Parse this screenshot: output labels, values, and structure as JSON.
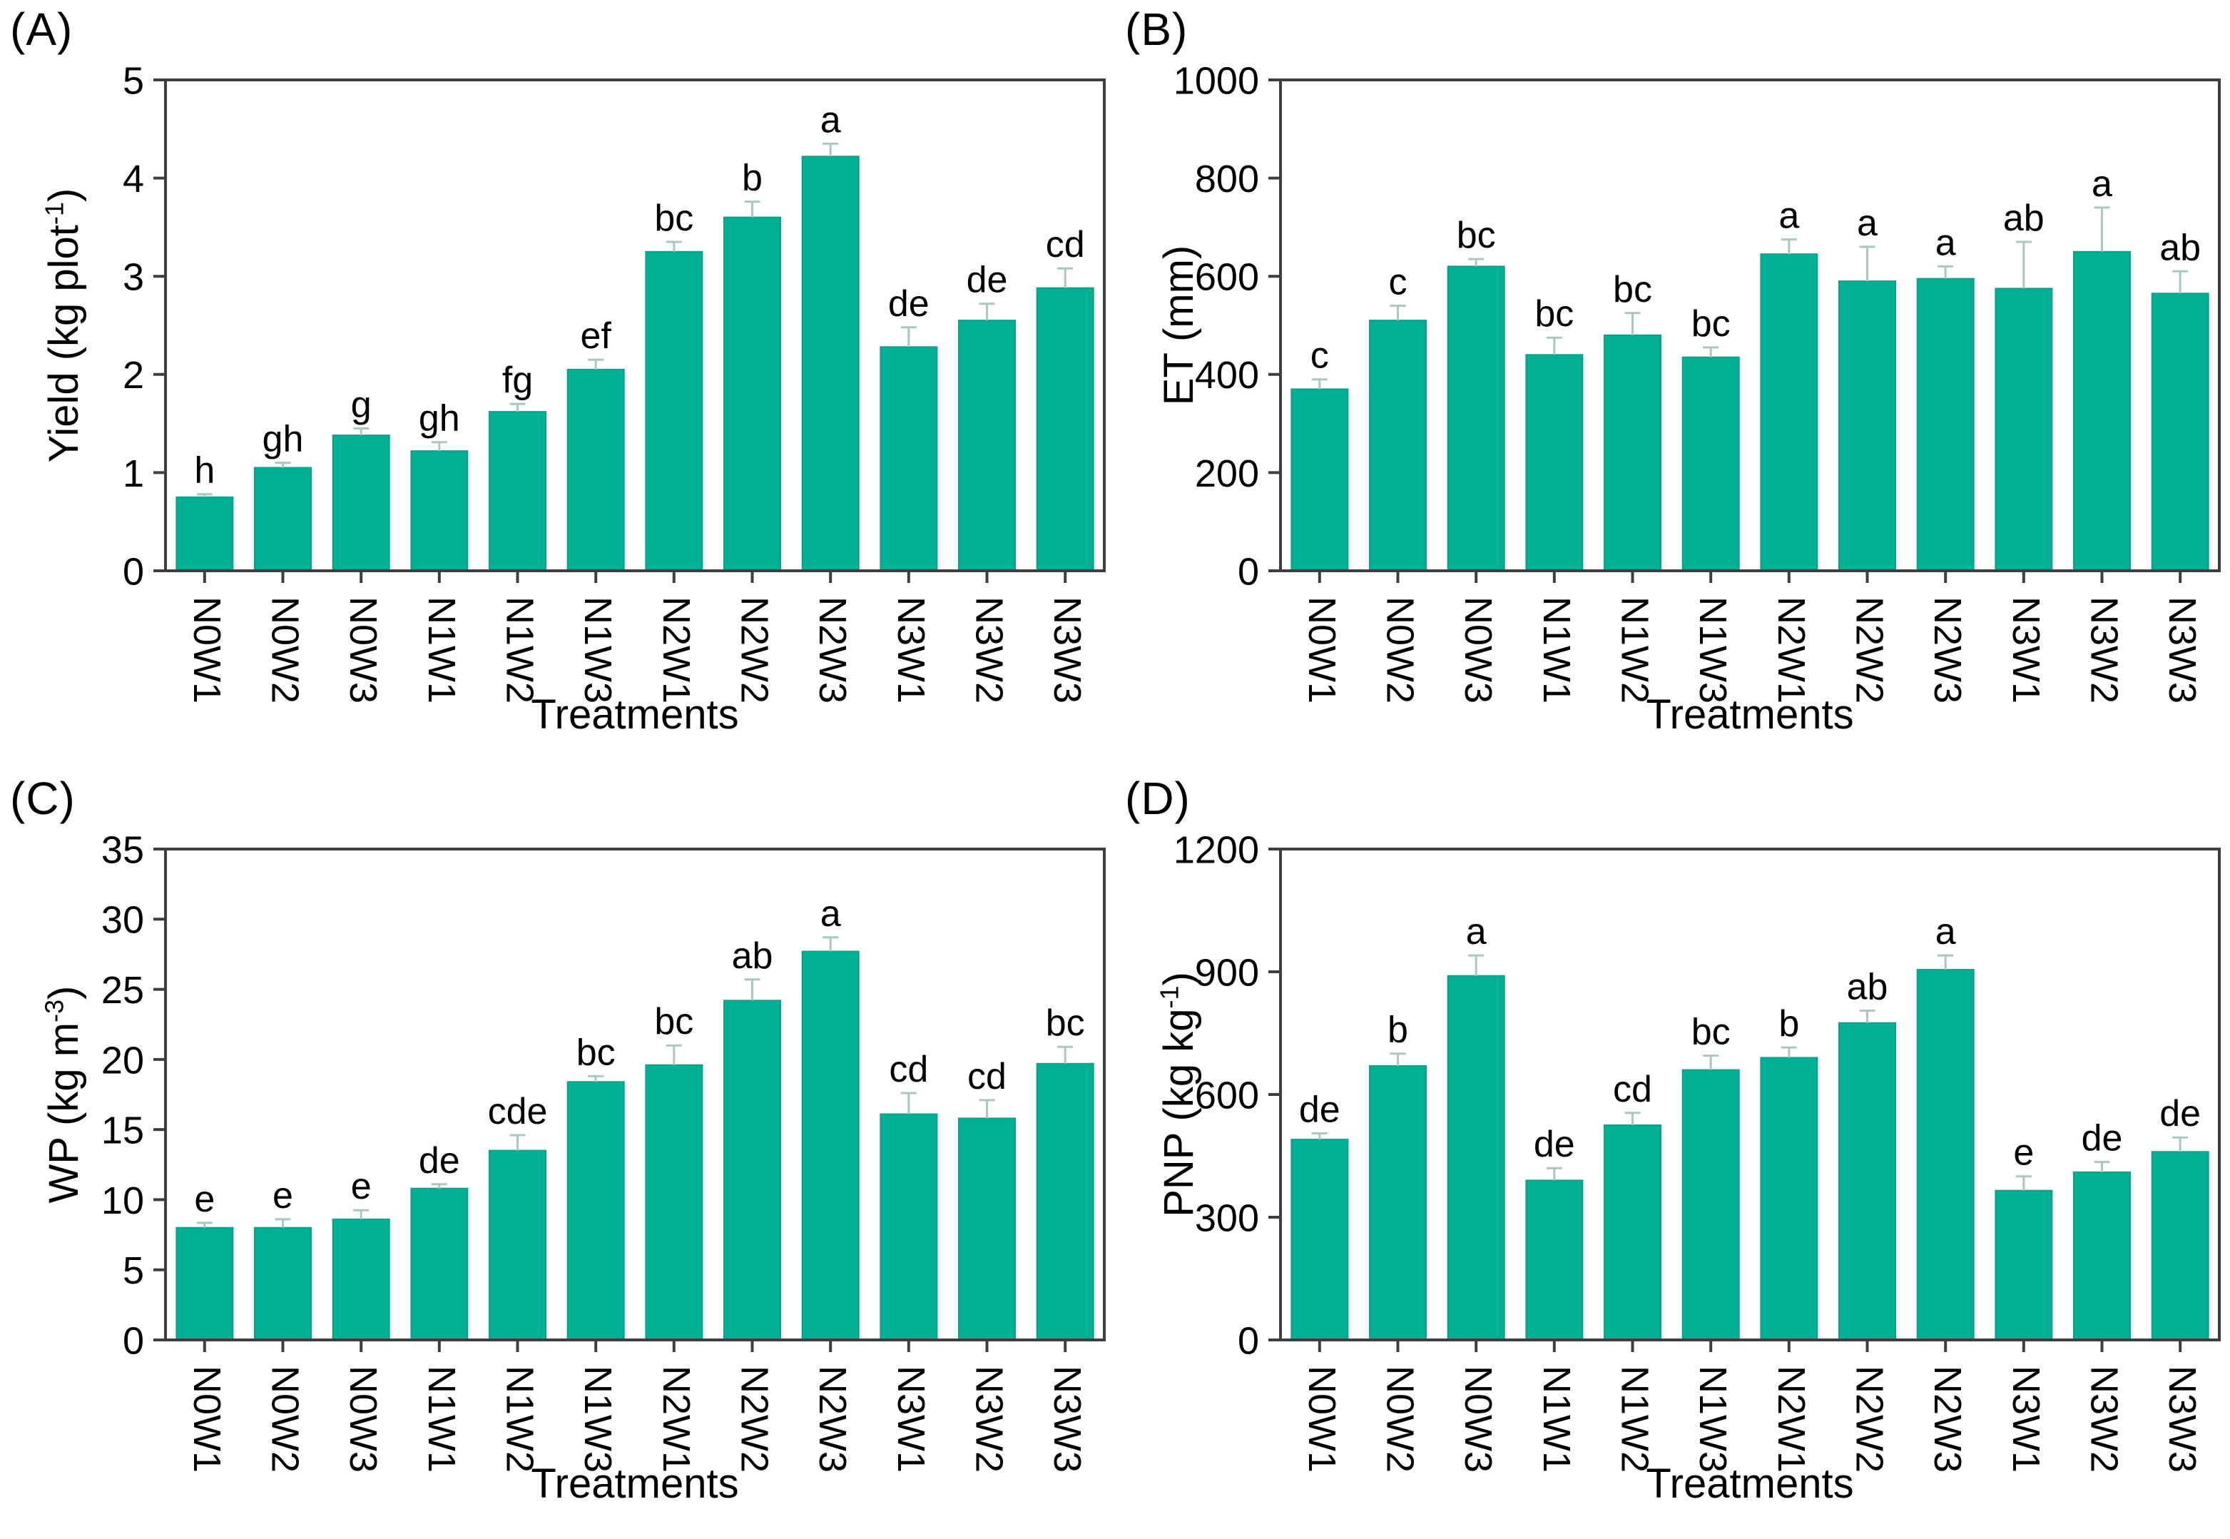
{
  "figure": {
    "background": "#ffffff",
    "colors": {
      "bar_fill": "#00b094",
      "bar_edge": "#0aa288",
      "error_bar": "#aac8c1",
      "axis": "#3e3e3e",
      "text": "#000000"
    },
    "x_axis_label": "Treatments",
    "categories": [
      "N0W1",
      "N0W2",
      "N0W3",
      "N1W1",
      "N1W2",
      "N1W3",
      "N2W1",
      "N2W2",
      "N2W3",
      "N3W1",
      "N3W2",
      "N3W3"
    ]
  },
  "chart_data": [
    {
      "type": "bar",
      "panel_tag": "(A)",
      "ylabel": {
        "prefix": "Yield (kg plot",
        "superscript": "-1",
        "suffix": ")"
      },
      "xlabel": "Treatments",
      "ylim": [
        0,
        5
      ],
      "yticks": [
        0,
        1,
        2,
        3,
        4,
        5
      ],
      "grid": false,
      "categories": [
        "N0W1",
        "N0W2",
        "N0W3",
        "N1W1",
        "N1W2",
        "N1W3",
        "N2W1",
        "N2W2",
        "N2W3",
        "N3W1",
        "N3W2",
        "N3W3"
      ],
      "values": [
        0.75,
        1.05,
        1.38,
        1.22,
        1.62,
        2.05,
        3.25,
        3.6,
        4.22,
        2.28,
        2.55,
        2.88
      ],
      "errors": [
        0.03,
        0.05,
        0.07,
        0.09,
        0.08,
        0.1,
        0.1,
        0.16,
        0.13,
        0.2,
        0.17,
        0.2
      ],
      "sig_letters": [
        "h",
        "gh",
        "g",
        "gh",
        "fg",
        "ef",
        "bc",
        "b",
        "a",
        "de",
        "de",
        "cd"
      ]
    },
    {
      "type": "bar",
      "panel_tag": "(B)",
      "ylabel": {
        "prefix": "ET (mm)",
        "superscript": "",
        "suffix": ""
      },
      "xlabel": "Treatments",
      "ylim": [
        0,
        1000
      ],
      "yticks": [
        0,
        200,
        400,
        600,
        800,
        1000
      ],
      "grid": false,
      "categories": [
        "N0W1",
        "N0W2",
        "N0W3",
        "N1W1",
        "N1W2",
        "N1W3",
        "N2W1",
        "N2W2",
        "N2W3",
        "N3W1",
        "N3W2",
        "N3W3"
      ],
      "values": [
        370,
        510,
        620,
        440,
        480,
        435,
        645,
        590,
        595,
        575,
        650,
        565
      ],
      "errors": [
        20,
        30,
        15,
        35,
        45,
        20,
        30,
        70,
        25,
        95,
        90,
        45
      ],
      "sig_letters": [
        "c",
        "c",
        "bc",
        "bc",
        "bc",
        "bc",
        "a",
        "a",
        "a",
        "ab",
        "a",
        "ab"
      ]
    },
    {
      "type": "bar",
      "panel_tag": "(C)",
      "ylabel": {
        "prefix": "WP (kg m",
        "superscript": "-3",
        "suffix": ")"
      },
      "xlabel": "Treatments",
      "ylim": [
        0,
        35
      ],
      "yticks": [
        0,
        5,
        10,
        15,
        20,
        25,
        30,
        35
      ],
      "grid": false,
      "categories": [
        "N0W1",
        "N0W2",
        "N0W3",
        "N1W1",
        "N1W2",
        "N1W3",
        "N2W1",
        "N2W2",
        "N2W3",
        "N3W1",
        "N3W2",
        "N3W3"
      ],
      "values": [
        8.0,
        8.0,
        8.6,
        10.8,
        13.5,
        18.4,
        19.6,
        24.2,
        27.7,
        16.1,
        15.8,
        19.7
      ],
      "errors": [
        0.35,
        0.6,
        0.65,
        0.3,
        1.1,
        0.4,
        1.4,
        1.5,
        1.0,
        1.5,
        1.3,
        1.2
      ],
      "sig_letters": [
        "e",
        "e",
        "e",
        "de",
        "cde",
        "bc",
        "bc",
        "ab",
        "a",
        "cd",
        "cd",
        "bc"
      ]
    },
    {
      "type": "bar",
      "panel_tag": "(D)",
      "ylabel": {
        "prefix": "PNP (kg kg",
        "superscript": "-1",
        "suffix": ")"
      },
      "xlabel": "Treatments",
      "ylim": [
        0,
        1200
      ],
      "yticks": [
        0,
        300,
        600,
        900,
        1200
      ],
      "grid": false,
      "categories": [
        "N0W1",
        "N0W2",
        "N0W3",
        "N1W1",
        "N1W2",
        "N1W3",
        "N2W1",
        "N2W2",
        "N2W3",
        "N3W1",
        "N3W2",
        "N3W3"
      ],
      "values": [
        490,
        670,
        890,
        390,
        525,
        660,
        690,
        775,
        905,
        365,
        410,
        460
      ],
      "errors": [
        15,
        30,
        50,
        30,
        30,
        35,
        25,
        30,
        35,
        35,
        25,
        35
      ],
      "sig_letters": [
        "de",
        "b",
        "a",
        "de",
        "cd",
        "bc",
        "b",
        "ab",
        "a",
        "e",
        "de",
        "de"
      ]
    }
  ]
}
